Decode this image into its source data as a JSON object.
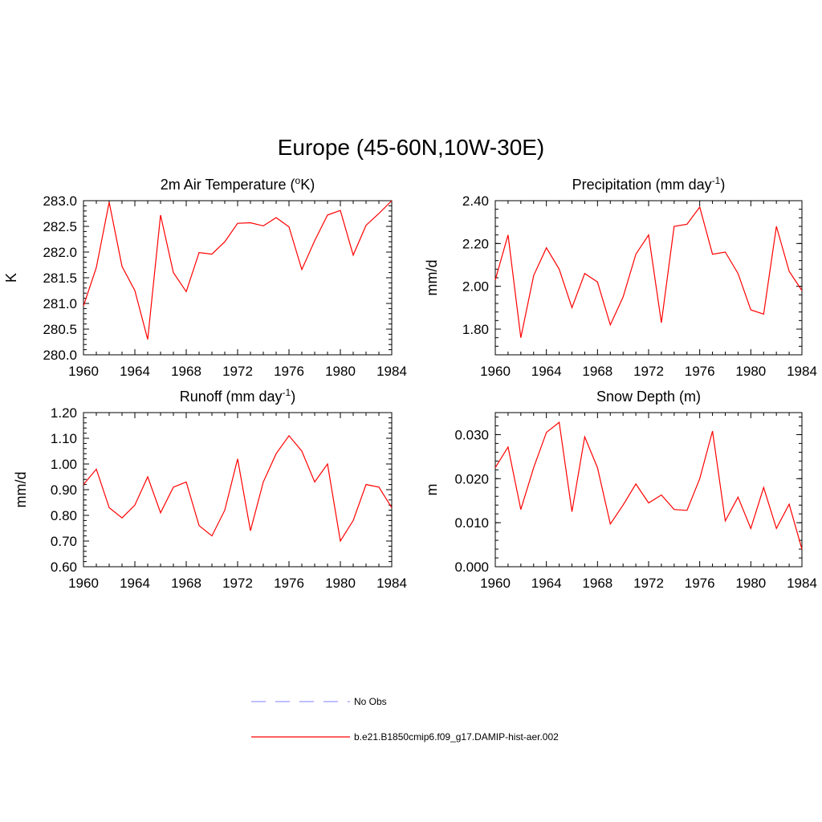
{
  "title": "Europe (45-60N,10W-30E)",
  "legend": [
    {
      "label": "No Obs",
      "color": "#9999ff",
      "dash": true
    },
    {
      "label": "b.e21.B1850cmip6.f09_g17.DAMIP-hist-aer.002",
      "color": "#ff0000",
      "dash": false
    }
  ],
  "chart_data": [
    {
      "type": "line",
      "title": "2m Air Temperature (",
      "title_sup": "o",
      "title_after": "K)",
      "ylabel": "K",
      "xlim": [
        1960,
        1984
      ],
      "ylim": [
        280.0,
        283.0
      ],
      "xticks": [
        1960,
        1964,
        1968,
        1972,
        1976,
        1980,
        1984
      ],
      "yticks": [
        "280.0",
        "280.5",
        "281.0",
        "281.5",
        "282.0",
        "282.5",
        "283.0"
      ],
      "series": [
        {
          "color": "#ff0000",
          "x": [
            1960,
            1961,
            1962,
            1963,
            1964,
            1965,
            1966,
            1967,
            1968,
            1969,
            1970,
            1971,
            1972,
            1973,
            1974,
            1975,
            1976,
            1977,
            1978,
            1979,
            1980,
            1981,
            1982,
            1983,
            1984
          ],
          "y": [
            280.95,
            281.7,
            282.97,
            281.72,
            281.25,
            280.3,
            282.72,
            281.6,
            281.23,
            281.99,
            281.96,
            282.2,
            282.56,
            282.57,
            282.51,
            282.67,
            282.49,
            281.66,
            282.22,
            282.72,
            282.81,
            281.94,
            282.52,
            282.75,
            283.0
          ]
        }
      ]
    },
    {
      "type": "line",
      "title": "Precipitation (mm day",
      "title_sup": "-1",
      "title_after": ")",
      "ylabel": "mm/d",
      "xlim": [
        1960,
        1984
      ],
      "ylim": [
        1.68,
        2.4
      ],
      "xticks": [
        1960,
        1964,
        1968,
        1972,
        1976,
        1980,
        1984
      ],
      "yticks": [
        "1.80",
        "2.00",
        "2.20",
        "2.40"
      ],
      "series": [
        {
          "color": "#ff0000",
          "x": [
            1960,
            1961,
            1962,
            1963,
            1964,
            1965,
            1966,
            1967,
            1968,
            1969,
            1970,
            1971,
            1972,
            1973,
            1974,
            1975,
            1976,
            1977,
            1978,
            1979,
            1980,
            1981,
            1982,
            1983,
            1984
          ],
          "y": [
            2.03,
            2.24,
            1.76,
            2.05,
            2.18,
            2.08,
            1.9,
            2.06,
            2.02,
            1.82,
            1.95,
            2.15,
            2.24,
            1.83,
            2.28,
            2.29,
            2.37,
            2.15,
            2.16,
            2.06,
            1.89,
            1.87,
            2.28,
            2.07,
            1.98
          ]
        }
      ]
    },
    {
      "type": "line",
      "title": "Runoff (mm day",
      "title_sup": "-1",
      "title_after": ")",
      "ylabel": "mm/d",
      "xlim": [
        1960,
        1984
      ],
      "ylim": [
        0.6,
        1.2
      ],
      "xticks": [
        1960,
        1964,
        1968,
        1972,
        1976,
        1980,
        1984
      ],
      "yticks": [
        "0.60",
        "0.70",
        "0.80",
        "0.90",
        "1.00",
        "1.10",
        "1.20"
      ],
      "series": [
        {
          "color": "#ff0000",
          "x": [
            1960,
            1961,
            1962,
            1963,
            1964,
            1965,
            1966,
            1967,
            1968,
            1969,
            1970,
            1971,
            1972,
            1973,
            1974,
            1975,
            1976,
            1977,
            1978,
            1979,
            1980,
            1981,
            1982,
            1983,
            1984
          ],
          "y": [
            0.92,
            0.98,
            0.83,
            0.79,
            0.84,
            0.95,
            0.81,
            0.91,
            0.93,
            0.76,
            0.72,
            0.82,
            1.02,
            0.74,
            0.93,
            1.04,
            1.11,
            1.05,
            0.93,
            1.0,
            0.7,
            0.78,
            0.92,
            0.91,
            0.83
          ]
        }
      ]
    },
    {
      "type": "line",
      "title": "Snow Depth (m)",
      "title_sup": "",
      "title_after": "",
      "ylabel": "m",
      "xlim": [
        1960,
        1984
      ],
      "ylim": [
        0.0,
        0.035
      ],
      "xticks": [
        1960,
        1964,
        1968,
        1972,
        1976,
        1980,
        1984
      ],
      "yticks": [
        "0.000",
        "0.010",
        "0.020",
        "0.030"
      ],
      "series": [
        {
          "color": "#ff0000",
          "x": [
            1960,
            1961,
            1962,
            1963,
            1964,
            1965,
            1966,
            1967,
            1968,
            1969,
            1970,
            1971,
            1972,
            1973,
            1974,
            1975,
            1976,
            1977,
            1978,
            1979,
            1980,
            1981,
            1982,
            1983,
            1984
          ],
          "y": [
            0.0225,
            0.0272,
            0.013,
            0.0225,
            0.0305,
            0.0328,
            0.0125,
            0.0295,
            0.0225,
            0.0097,
            0.014,
            0.0188,
            0.0145,
            0.0163,
            0.013,
            0.0128,
            0.02,
            0.0308,
            0.0104,
            0.0158,
            0.0087,
            0.018,
            0.0087,
            0.0142,
            0.004
          ]
        }
      ]
    }
  ]
}
